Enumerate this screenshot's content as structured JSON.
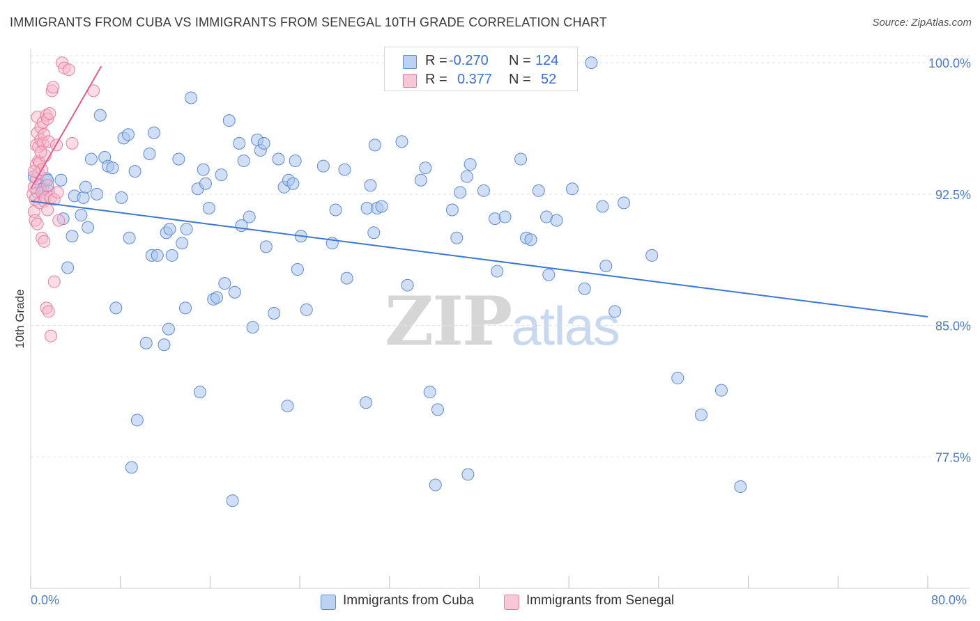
{
  "title": "IMMIGRANTS FROM CUBA VS IMMIGRANTS FROM SENEGAL 10TH GRADE CORRELATION CHART",
  "source": "Source: ZipAtlas.com",
  "watermark": {
    "zip": "ZIP",
    "atlas": "atlas"
  },
  "legend": {
    "cuba": {
      "r_label": "R =",
      "r_value": "-0.270",
      "n_label": "N =",
      "n_value": "124"
    },
    "senegal": {
      "r_label": "R =",
      "r_value": "0.377",
      "n_label": "N =",
      "n_value": "52"
    }
  },
  "colors": {
    "cuba_fill": "#a9c4ee",
    "cuba_stroke": "#5b8ad6",
    "cuba_line": "#3a78d4",
    "senegal_fill": "#f6b9cc",
    "senegal_stroke": "#e77fa1",
    "senegal_line": "#e05c8c",
    "grid": "#e3e3e3",
    "axis_text": "#4a7cc9"
  },
  "chart_data": {
    "type": "scatter",
    "title": "IMMIGRANTS FROM CUBA VS IMMIGRANTS FROM SENEGAL 10TH GRADE CORRELATION CHART",
    "xlabel": "",
    "ylabel": "10th Grade",
    "xlim": [
      0,
      80
    ],
    "ylim": [
      70.0,
      100.8
    ],
    "x_tick_labels": [
      "0.0%",
      "80.0%"
    ],
    "y_ticks": [
      77.5,
      85.0,
      92.5,
      100.0
    ],
    "y_tick_labels": [
      "77.5%",
      "85.0%",
      "92.5%",
      "100.0%"
    ],
    "legend_position": "top-center",
    "series": [
      {
        "name": "Immigrants from Cuba",
        "r": -0.27,
        "n": 124,
        "trend": {
          "x": [
            0,
            80
          ],
          "y": [
            92.1,
            85.5
          ]
        },
        "points": [
          [
            0.3,
            93.5
          ],
          [
            0.6,
            92.6
          ],
          [
            0.9,
            93.0
          ],
          [
            1.1,
            92.8
          ],
          [
            1.4,
            93.4
          ],
          [
            1.6,
            92.7
          ],
          [
            2.7,
            93.3
          ],
          [
            1.5,
            93.3
          ],
          [
            2.9,
            91.1
          ],
          [
            3.3,
            88.3
          ],
          [
            3.7,
            90.1
          ],
          [
            3.9,
            92.4
          ],
          [
            4.5,
            91.3
          ],
          [
            4.7,
            92.3
          ],
          [
            4.9,
            92.9
          ],
          [
            5.1,
            90.6
          ],
          [
            5.4,
            94.5
          ],
          [
            5.9,
            92.5
          ],
          [
            6.2,
            97.0
          ],
          [
            6.6,
            94.6
          ],
          [
            6.9,
            94.1
          ],
          [
            7.3,
            94.0
          ],
          [
            7.6,
            86.0
          ],
          [
            8.1,
            92.3
          ],
          [
            8.3,
            95.7
          ],
          [
            8.7,
            95.9
          ],
          [
            8.8,
            90.0
          ],
          [
            9.3,
            93.8
          ],
          [
            9.5,
            79.6
          ],
          [
            9.0,
            76.9
          ],
          [
            10.3,
            84.0
          ],
          [
            10.6,
            94.8
          ],
          [
            10.8,
            89.0
          ],
          [
            11.0,
            96.0
          ],
          [
            11.3,
            89.0
          ],
          [
            11.9,
            83.9
          ],
          [
            12.1,
            90.3
          ],
          [
            12.3,
            84.8
          ],
          [
            12.4,
            90.5
          ],
          [
            12.6,
            89.0
          ],
          [
            13.2,
            94.5
          ],
          [
            13.5,
            89.7
          ],
          [
            13.8,
            86.0
          ],
          [
            13.9,
            90.5
          ],
          [
            14.3,
            98.0
          ],
          [
            14.9,
            92.8
          ],
          [
            15.1,
            81.2
          ],
          [
            15.4,
            93.9
          ],
          [
            15.6,
            93.1
          ],
          [
            15.9,
            91.7
          ],
          [
            16.3,
            86.5
          ],
          [
            16.6,
            86.6
          ],
          [
            17.0,
            93.6
          ],
          [
            17.3,
            87.4
          ],
          [
            17.7,
            96.7
          ],
          [
            18.2,
            86.9
          ],
          [
            18.0,
            75.0
          ],
          [
            18.6,
            95.4
          ],
          [
            18.8,
            90.7
          ],
          [
            19.0,
            94.4
          ],
          [
            19.5,
            91.2
          ],
          [
            19.8,
            84.9
          ],
          [
            20.2,
            95.6
          ],
          [
            20.5,
            95.0
          ],
          [
            20.8,
            95.4
          ],
          [
            21.0,
            89.5
          ],
          [
            21.7,
            85.7
          ],
          [
            22.1,
            94.5
          ],
          [
            22.6,
            92.9
          ],
          [
            22.9,
            80.4
          ],
          [
            23.0,
            93.3
          ],
          [
            23.4,
            93.1
          ],
          [
            23.6,
            94.4
          ],
          [
            23.8,
            88.2
          ],
          [
            24.1,
            90.1
          ],
          [
            24.6,
            85.9
          ],
          [
            26.1,
            94.1
          ],
          [
            26.9,
            89.7
          ],
          [
            27.2,
            91.6
          ],
          [
            28.0,
            93.9
          ],
          [
            28.2,
            87.7
          ],
          [
            29.9,
            80.6
          ],
          [
            30.0,
            91.7
          ],
          [
            30.3,
            93.0
          ],
          [
            30.6,
            90.3
          ],
          [
            30.7,
            95.3
          ],
          [
            30.9,
            91.7
          ],
          [
            31.3,
            91.8
          ],
          [
            33.1,
            95.5
          ],
          [
            33.6,
            87.3
          ],
          [
            34.8,
            93.3
          ],
          [
            35.2,
            94.0
          ],
          [
            35.6,
            81.2
          ],
          [
            36.1,
            75.9
          ],
          [
            36.3,
            80.2
          ],
          [
            37.6,
            91.6
          ],
          [
            38.0,
            90.0
          ],
          [
            38.9,
            93.5
          ],
          [
            39.0,
            76.5
          ],
          [
            39.2,
            94.2
          ],
          [
            40.4,
            92.7
          ],
          [
            41.4,
            91.1
          ],
          [
            41.6,
            88.1
          ],
          [
            42.3,
            91.2
          ],
          [
            44.2,
            90.0
          ],
          [
            44.6,
            89.9
          ],
          [
            45.3,
            92.7
          ],
          [
            46.0,
            91.2
          ],
          [
            46.2,
            87.9
          ],
          [
            46.9,
            91.0
          ],
          [
            48.3,
            92.8
          ],
          [
            49.4,
            87.1
          ],
          [
            50.0,
            100.0
          ],
          [
            51.0,
            91.8
          ],
          [
            52.1,
            85.8
          ],
          [
            51.3,
            88.4
          ],
          [
            52.9,
            92.0
          ],
          [
            55.4,
            89.0
          ],
          [
            57.7,
            82.0
          ],
          [
            59.8,
            79.9
          ],
          [
            61.6,
            81.3
          ],
          [
            63.3,
            75.8
          ],
          [
            38.3,
            92.6
          ],
          [
            43.7,
            94.5
          ]
        ]
      },
      {
        "name": "Immigrants from Senegal",
        "r": 0.377,
        "n": 52,
        "trend": {
          "x": [
            0,
            6.3
          ],
          "y": [
            92.8,
            99.8
          ]
        },
        "points": [
          [
            0.2,
            92.5
          ],
          [
            0.3,
            92.9
          ],
          [
            0.3,
            91.5
          ],
          [
            0.4,
            91.0
          ],
          [
            0.4,
            92.2
          ],
          [
            0.5,
            93.4
          ],
          [
            0.5,
            94.2
          ],
          [
            0.5,
            95.3
          ],
          [
            0.6,
            96.0
          ],
          [
            0.6,
            96.9
          ],
          [
            0.7,
            93.7
          ],
          [
            0.7,
            94.4
          ],
          [
            0.7,
            95.2
          ],
          [
            0.8,
            92.0
          ],
          [
            0.8,
            94.3
          ],
          [
            0.9,
            95.6
          ],
          [
            0.9,
            96.3
          ],
          [
            1.0,
            92.6
          ],
          [
            1.0,
            93.9
          ],
          [
            1.1,
            95.4
          ],
          [
            1.1,
            96.6
          ],
          [
            1.2,
            92.1
          ],
          [
            1.2,
            95.9
          ],
          [
            1.3,
            94.7
          ],
          [
            1.3,
            92.3
          ],
          [
            1.4,
            97.0
          ],
          [
            1.5,
            96.8
          ],
          [
            1.5,
            91.6
          ],
          [
            1.6,
            95.5
          ],
          [
            1.7,
            97.1
          ],
          [
            1.8,
            92.3
          ],
          [
            1.9,
            98.4
          ],
          [
            2.0,
            98.6
          ],
          [
            2.1,
            92.2
          ],
          [
            2.3,
            95.3
          ],
          [
            2.5,
            91.0
          ],
          [
            2.8,
            100.0
          ],
          [
            3.0,
            99.7
          ],
          [
            3.4,
            99.6
          ],
          [
            3.7,
            95.4
          ],
          [
            1.0,
            90.0
          ],
          [
            1.2,
            89.8
          ],
          [
            1.4,
            86.0
          ],
          [
            1.6,
            85.8
          ],
          [
            1.8,
            84.4
          ],
          [
            2.1,
            87.5
          ],
          [
            5.6,
            98.4
          ],
          [
            0.6,
            90.8
          ],
          [
            0.3,
            93.8
          ],
          [
            0.9,
            94.9
          ],
          [
            1.5,
            93.0
          ],
          [
            2.4,
            92.6
          ]
        ]
      }
    ]
  },
  "bottom_legend": {
    "cuba": "Immigrants from Cuba",
    "senegal": "Immigrants from Senegal"
  }
}
